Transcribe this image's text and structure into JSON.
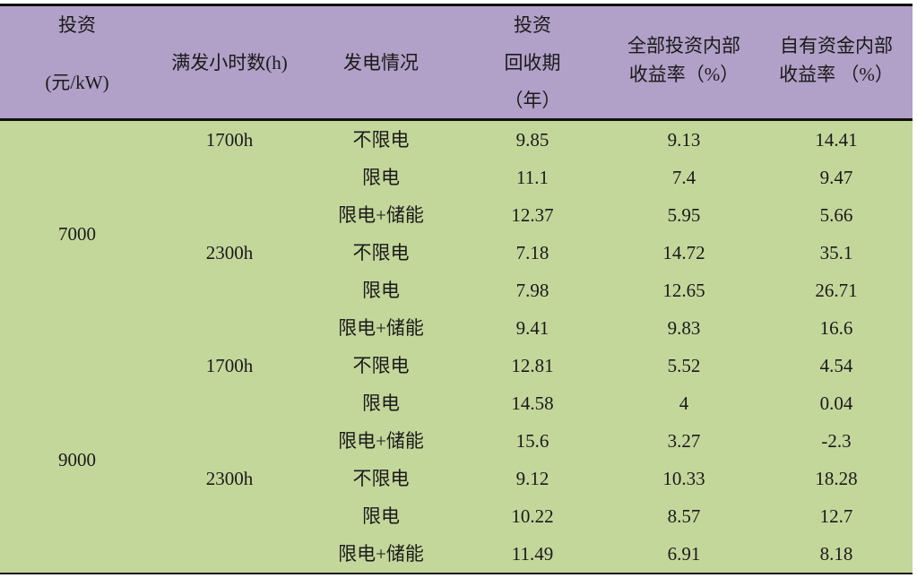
{
  "header": {
    "investment": [
      "投资",
      "(元/kW)"
    ],
    "full_hours": "满发小时数(h)",
    "generation": "发电情况",
    "payback": [
      "投资",
      "回收期",
      "（年）"
    ],
    "total_irr": [
      "全部投资内部",
      "收益率（%）"
    ],
    "equity_irr": [
      "自有资金内部",
      "收益率 （%）"
    ]
  },
  "groups": [
    {
      "investment": "7000",
      "hours": [
        "1700h",
        "2300h"
      ]
    },
    {
      "investment": "9000",
      "hours": [
        "1700h",
        "2300h"
      ]
    }
  ],
  "colors": {
    "header_bg": "#b1a0c7",
    "body_bg": "#c4d79b"
  },
  "rows": [
    [
      "不限电",
      "9.85",
      "9.13",
      "14.41"
    ],
    [
      "限电",
      "11.1",
      "7.4",
      "9.47"
    ],
    [
      "限电+储能",
      "12.37",
      "5.95",
      "5.66"
    ],
    [
      "不限电",
      "7.18",
      "14.72",
      "35.1"
    ],
    [
      "限电",
      "7.98",
      "12.65",
      "26.71"
    ],
    [
      "限电+储能",
      "9.41",
      "9.83",
      "16.6"
    ],
    [
      "不限电",
      "12.81",
      "5.52",
      "4.54"
    ],
    [
      "限电",
      "14.58",
      "4",
      "0.04"
    ],
    [
      "限电+储能",
      "15.6",
      "3.27",
      "-2.3"
    ],
    [
      "不限电",
      "9.12",
      "10.33",
      "18.28"
    ],
    [
      "限电",
      "10.22",
      "8.57",
      "12.7"
    ],
    [
      "限电+储能",
      "11.49",
      "6.91",
      "8.18"
    ]
  ]
}
